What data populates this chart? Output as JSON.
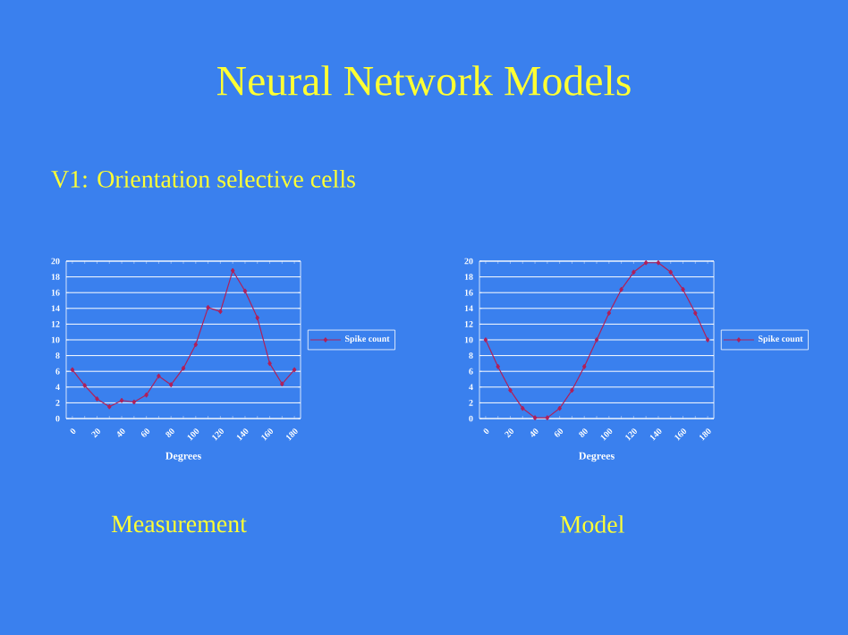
{
  "chart_data": [
    {
      "type": "line",
      "title": "Neural Network Models",
      "subtitle": "V1: Orientation selective cells",
      "xlabel": "Degrees",
      "categories": [
        "0",
        null,
        "20",
        null,
        "40",
        null,
        "60",
        null,
        "80",
        null,
        "100",
        null,
        "120",
        null,
        "140",
        null,
        "160",
        null,
        "180"
      ],
      "series": [
        {
          "name": "Spike count",
          "color": "#b0205a",
          "values": [
            6.2,
            4.2,
            2.5,
            1.5,
            2.3,
            2.1,
            3.0,
            5.4,
            4.3,
            6.4,
            9.4,
            14.1,
            13.6,
            18.8,
            16.2,
            12.8,
            7.0,
            4.4,
            6.2
          ]
        }
      ],
      "ylim": [
        0,
        20
      ],
      "yticks": [
        0,
        2,
        4,
        6,
        8,
        10,
        12,
        14,
        16,
        18,
        20
      ],
      "grid": "y",
      "legend": "right",
      "marker": "diamond",
      "line_style": "solid",
      "annotations": [
        "Measurement"
      ]
    },
    {
      "type": "line",
      "xlabel": "Degrees",
      "categories": [
        "0",
        null,
        "20",
        null,
        "40",
        null,
        "60",
        null,
        "80",
        null,
        "100",
        null,
        "120",
        null,
        "140",
        null,
        "160",
        null,
        "180"
      ],
      "series": [
        {
          "name": "Spike count",
          "color": "#b0205a",
          "values": [
            10,
            6.6,
            3.6,
            1.3,
            0.1,
            0.1,
            1.3,
            3.6,
            6.6,
            10,
            13.4,
            16.4,
            18.6,
            19.8,
            19.8,
            18.6,
            16.4,
            13.4,
            10
          ]
        }
      ],
      "ylim": [
        0,
        20
      ],
      "yticks": [
        0,
        2,
        4,
        6,
        8,
        10,
        12,
        14,
        16,
        18,
        20
      ],
      "grid": "y",
      "legend": "right",
      "marker": "diamond",
      "line_style": "solid",
      "annotations": [
        "Model"
      ]
    }
  ]
}
